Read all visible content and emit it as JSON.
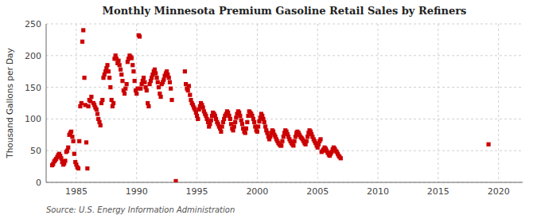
{
  "chart_data": {
    "type": "scatter",
    "title": "Monthly Minnesota Premium Gasoline Retail Sales by Refiners",
    "ylabel": "Thousand Gallons per Day",
    "source": "Source: U.S. Energy Information Administration",
    "color": "#cc0000",
    "marker": "square",
    "grid": true,
    "xlim": [
      1982.5,
      2022
    ],
    "ylim": [
      0,
      250
    ],
    "xticks": [
      1985,
      1990,
      1995,
      2000,
      2005,
      2010,
      2015,
      2020
    ],
    "yticks": [
      0,
      50,
      100,
      150,
      200,
      250
    ],
    "x": [
      1983.0,
      1983.08,
      1983.17,
      1983.25,
      1983.33,
      1983.42,
      1983.5,
      1983.58,
      1983.67,
      1983.75,
      1983.83,
      1983.92,
      1984.0,
      1984.08,
      1984.17,
      1984.25,
      1984.33,
      1984.42,
      1984.5,
      1984.58,
      1984.67,
      1984.75,
      1984.83,
      1984.92,
      1985.0,
      1985.08,
      1985.17,
      1985.25,
      1985.33,
      1985.42,
      1985.5,
      1985.58,
      1985.67,
      1985.75,
      1985.83,
      1985.92,
      1986.0,
      1986.08,
      1986.17,
      1986.25,
      1986.42,
      1986.5,
      1986.58,
      1986.67,
      1986.75,
      1986.83,
      1986.92,
      1987.0,
      1987.08,
      1987.17,
      1987.25,
      1987.33,
      1987.42,
      1987.5,
      1987.58,
      1987.67,
      1987.75,
      1987.83,
      1987.92,
      1988.0,
      1988.08,
      1988.17,
      1988.25,
      1988.33,
      1988.42,
      1988.5,
      1988.58,
      1988.67,
      1988.75,
      1988.83,
      1988.92,
      1989.0,
      1989.08,
      1989.17,
      1989.25,
      1989.33,
      1989.42,
      1989.5,
      1989.58,
      1989.67,
      1989.75,
      1989.83,
      1989.92,
      1990.0,
      1990.08,
      1990.17,
      1990.25,
      1990.33,
      1990.42,
      1990.5,
      1990.58,
      1990.67,
      1990.75,
      1990.83,
      1990.92,
      1991.0,
      1991.08,
      1991.17,
      1991.25,
      1991.33,
      1991.42,
      1991.5,
      1991.58,
      1991.67,
      1991.75,
      1991.83,
      1991.92,
      1992.0,
      1992.08,
      1992.17,
      1992.25,
      1992.33,
      1992.42,
      1992.5,
      1992.58,
      1992.67,
      1992.75,
      1992.83,
      1992.92,
      1993.25,
      1994.0,
      1994.08,
      1994.17,
      1994.25,
      1994.33,
      1994.42,
      1994.5,
      1994.58,
      1994.67,
      1994.75,
      1994.83,
      1994.92,
      1995.0,
      1995.08,
      1995.17,
      1995.25,
      1995.33,
      1995.42,
      1995.5,
      1995.58,
      1995.67,
      1995.75,
      1995.83,
      1995.92,
      1996.0,
      1996.08,
      1996.17,
      1996.25,
      1996.33,
      1996.42,
      1996.5,
      1996.58,
      1996.67,
      1996.75,
      1996.83,
      1996.92,
      1997.0,
      1997.08,
      1997.17,
      1997.25,
      1997.33,
      1997.42,
      1997.5,
      1997.58,
      1997.67,
      1997.75,
      1997.83,
      1997.92,
      1998.0,
      1998.08,
      1998.17,
      1998.25,
      1998.33,
      1998.42,
      1998.5,
      1998.58,
      1998.67,
      1998.75,
      1998.83,
      1998.92,
      1999.0,
      1999.08,
      1999.17,
      1999.25,
      1999.33,
      1999.42,
      1999.5,
      1999.58,
      1999.67,
      1999.75,
      1999.83,
      1999.92,
      2000.0,
      2000.08,
      2000.17,
      2000.25,
      2000.33,
      2000.42,
      2000.5,
      2000.58,
      2000.67,
      2000.75,
      2000.83,
      2000.92,
      2001.0,
      2001.08,
      2001.17,
      2001.25,
      2001.33,
      2001.42,
      2001.5,
      2001.58,
      2001.67,
      2001.75,
      2001.83,
      2001.92,
      2002.0,
      2002.08,
      2002.17,
      2002.25,
      2002.33,
      2002.42,
      2002.5,
      2002.58,
      2002.67,
      2002.75,
      2002.83,
      2002.92,
      2003.0,
      2003.08,
      2003.17,
      2003.25,
      2003.33,
      2003.42,
      2003.5,
      2003.58,
      2003.67,
      2003.75,
      2003.83,
      2003.92,
      2004.0,
      2004.08,
      2004.17,
      2004.25,
      2004.33,
      2004.42,
      2004.5,
      2004.58,
      2004.67,
      2004.75,
      2004.83,
      2004.92,
      2005.0,
      2005.08,
      2005.17,
      2005.25,
      2005.33,
      2005.42,
      2005.5,
      2005.58,
      2005.67,
      2005.75,
      2005.83,
      2005.92,
      2006.0,
      2006.08,
      2006.17,
      2006.25,
      2006.33,
      2006.42,
      2006.5,
      2006.58,
      2006.67,
      2006.75,
      2006.83,
      2006.92,
      2019.17
    ],
    "values": [
      27,
      29,
      33,
      35,
      37,
      40,
      43,
      45,
      42,
      38,
      32,
      28,
      30,
      34,
      48,
      50,
      55,
      75,
      78,
      80,
      72,
      65,
      45,
      32,
      28,
      24,
      22,
      65,
      120,
      125,
      222,
      240,
      165,
      122,
      63,
      22,
      120,
      130,
      128,
      135,
      125,
      122,
      118,
      115,
      108,
      100,
      95,
      90,
      125,
      130,
      165,
      170,
      175,
      180,
      185,
      175,
      165,
      150,
      130,
      120,
      125,
      195,
      200,
      195,
      188,
      192,
      185,
      178,
      170,
      160,
      145,
      140,
      148,
      155,
      190,
      195,
      200,
      198,
      196,
      185,
      175,
      160,
      145,
      140,
      148,
      232,
      230,
      148,
      155,
      160,
      165,
      158,
      150,
      145,
      125,
      120,
      155,
      160,
      165,
      170,
      175,
      178,
      172,
      165,
      158,
      150,
      140,
      135,
      155,
      158,
      162,
      168,
      172,
      175,
      170,
      165,
      158,
      148,
      130,
      2,
      175,
      155,
      148,
      145,
      152,
      138,
      130,
      125,
      122,
      118,
      115,
      110,
      105,
      100,
      115,
      120,
      125,
      122,
      118,
      112,
      108,
      105,
      100,
      95,
      88,
      92,
      98,
      105,
      110,
      108,
      105,
      100,
      95,
      92,
      88,
      85,
      80,
      88,
      95,
      100,
      105,
      108,
      112,
      110,
      105,
      100,
      92,
      85,
      82,
      88,
      95,
      102,
      108,
      112,
      110,
      105,
      98,
      92,
      85,
      80,
      78,
      85,
      95,
      105,
      112,
      110,
      108,
      105,
      100,
      95,
      88,
      82,
      80,
      88,
      96,
      102,
      108,
      105,
      100,
      95,
      88,
      82,
      78,
      72,
      68,
      72,
      78,
      82,
      80,
      75,
      72,
      68,
      65,
      62,
      60,
      58,
      58,
      65,
      72,
      78,
      82,
      80,
      76,
      72,
      68,
      65,
      62,
      60,
      58,
      65,
      72,
      78,
      80,
      78,
      75,
      72,
      70,
      68,
      65,
      62,
      60,
      65,
      72,
      78,
      82,
      80,
      76,
      72,
      68,
      65,
      62,
      58,
      55,
      60,
      65,
      68,
      48,
      50,
      52,
      55,
      53,
      50,
      47,
      44,
      42,
      45,
      48,
      52,
      55,
      53,
      50,
      48,
      45,
      42,
      40,
      38,
      60
    ]
  }
}
